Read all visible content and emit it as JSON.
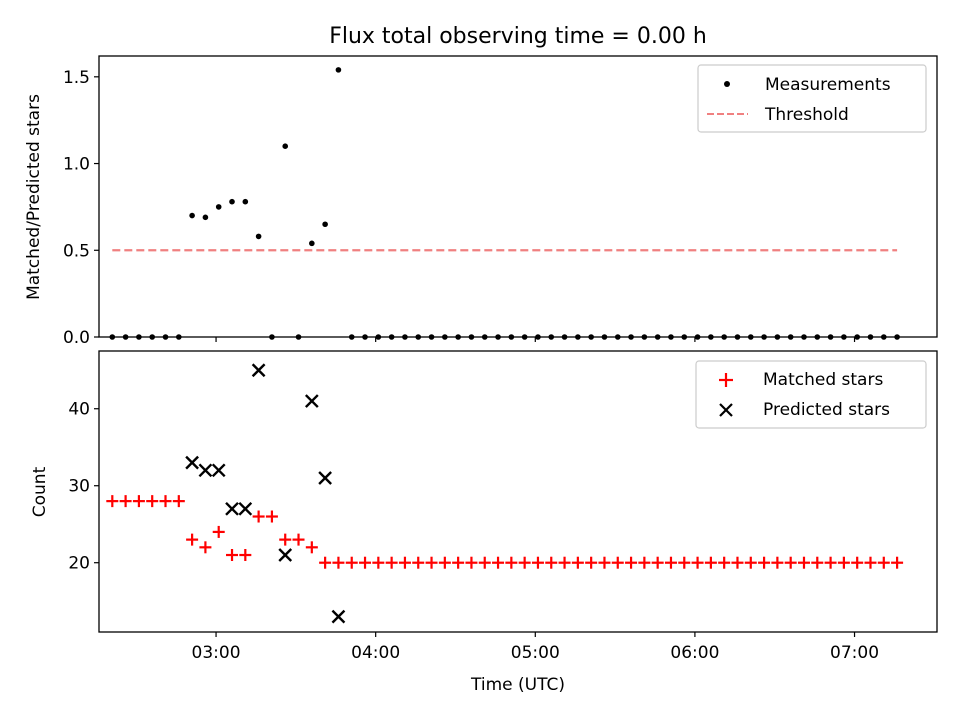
{
  "title": "Flux total observing time = 0.00 h",
  "chart_data": [
    {
      "type": "scatter",
      "ylabel": "Matched/Predicted stars",
      "xlabel": "",
      "xlim": [
        "02:16",
        "07:31"
      ],
      "ylim": [
        0,
        1.62
      ],
      "yticks": [
        0.0,
        0.5,
        1.0,
        1.5
      ],
      "ytick_labels": [
        "0.0",
        "0.5",
        "1.0",
        "1.5"
      ],
      "legend_position": "top-right",
      "series": [
        {
          "name": "Measurements",
          "marker": "dot",
          "color": "#000000",
          "x": [
            "02:21",
            "02:26",
            "02:31",
            "02:36",
            "02:41",
            "02:46",
            "02:51",
            "02:56",
            "03:01",
            "03:06",
            "03:11",
            "03:16",
            "03:21",
            "03:26",
            "03:31",
            "03:36",
            "03:41",
            "03:46",
            "03:51",
            "03:56",
            "04:01",
            "04:06",
            "04:11",
            "04:16",
            "04:21",
            "04:26",
            "04:31",
            "04:36",
            "04:41",
            "04:46",
            "04:51",
            "04:56",
            "05:01",
            "05:06",
            "05:11",
            "05:16",
            "05:21",
            "05:26",
            "05:31",
            "05:36",
            "05:41",
            "05:46",
            "05:51",
            "05:56",
            "06:01",
            "06:06",
            "06:11",
            "06:16",
            "06:21",
            "06:26",
            "06:31",
            "06:36",
            "06:41",
            "06:46",
            "06:51",
            "06:56",
            "07:01",
            "07:06",
            "07:11",
            "07:16"
          ],
          "y": [
            0.0,
            0.0,
            0.0,
            0.0,
            0.0,
            0.0,
            0.7,
            0.69,
            0.75,
            0.78,
            0.78,
            0.58,
            0.0,
            1.1,
            0.0,
            0.54,
            0.65,
            1.54,
            0.0,
            0.0,
            0.0,
            0.0,
            0.0,
            0.0,
            0.0,
            0.0,
            0.0,
            0.0,
            0.0,
            0.0,
            0.0,
            0.0,
            0.0,
            0.0,
            0.0,
            0.0,
            0.0,
            0.0,
            0.0,
            0.0,
            0.0,
            0.0,
            0.0,
            0.0,
            0.0,
            0.0,
            0.0,
            0.0,
            0.0,
            0.0,
            0.0,
            0.0,
            0.0,
            0.0,
            0.0,
            0.0,
            0.0,
            0.0,
            0.0,
            0.0
          ]
        },
        {
          "name": "Threshold",
          "type": "line",
          "style": "dashed",
          "color": "#f08080",
          "x": [
            "02:21",
            "07:16"
          ],
          "y": [
            0.5,
            0.5
          ]
        }
      ]
    },
    {
      "type": "scatter",
      "ylabel": "Count",
      "xlabel": "Time (UTC)",
      "xlim": [
        "02:16",
        "07:31"
      ],
      "ylim": [
        11,
        47.5
      ],
      "xticks": [
        "03:00",
        "04:00",
        "05:00",
        "06:00",
        "07:00"
      ],
      "yticks": [
        20,
        30,
        40
      ],
      "ytick_labels": [
        "20",
        "30",
        "40"
      ],
      "legend_position": "top-right",
      "series": [
        {
          "name": "Matched stars",
          "marker": "plus",
          "color": "#ff0000",
          "x": [
            "02:21",
            "02:26",
            "02:31",
            "02:36",
            "02:41",
            "02:46",
            "02:51",
            "02:56",
            "03:01",
            "03:06",
            "03:11",
            "03:16",
            "03:21",
            "03:26",
            "03:31",
            "03:36",
            "03:41",
            "03:46",
            "03:51",
            "03:56",
            "04:01",
            "04:06",
            "04:11",
            "04:16",
            "04:21",
            "04:26",
            "04:31",
            "04:36",
            "04:41",
            "04:46",
            "04:51",
            "04:56",
            "05:01",
            "05:06",
            "05:11",
            "05:16",
            "05:21",
            "05:26",
            "05:31",
            "05:36",
            "05:41",
            "05:46",
            "05:51",
            "05:56",
            "06:01",
            "06:06",
            "06:11",
            "06:16",
            "06:21",
            "06:26",
            "06:31",
            "06:36",
            "06:41",
            "06:46",
            "06:51",
            "06:56",
            "07:01",
            "07:06",
            "07:11",
            "07:16"
          ],
          "y": [
            28,
            28,
            28,
            28,
            28,
            28,
            23,
            22,
            24,
            21,
            21,
            26,
            26,
            23,
            23,
            22,
            20,
            20,
            20,
            20,
            20,
            20,
            20,
            20,
            20,
            20,
            20,
            20,
            20,
            20,
            20,
            20,
            20,
            20,
            20,
            20,
            20,
            20,
            20,
            20,
            20,
            20,
            20,
            20,
            20,
            20,
            20,
            20,
            20,
            20,
            20,
            20,
            20,
            20,
            20,
            20,
            20,
            20,
            20,
            20
          ]
        },
        {
          "name": "Predicted stars",
          "marker": "x",
          "color": "#000000",
          "x": [
            "02:51",
            "02:56",
            "03:01",
            "03:06",
            "03:11",
            "03:16",
            "03:26",
            "03:36",
            "03:41",
            "03:46"
          ],
          "y": [
            33,
            32,
            32,
            27,
            27,
            45,
            21,
            41,
            31,
            13
          ]
        }
      ]
    }
  ]
}
